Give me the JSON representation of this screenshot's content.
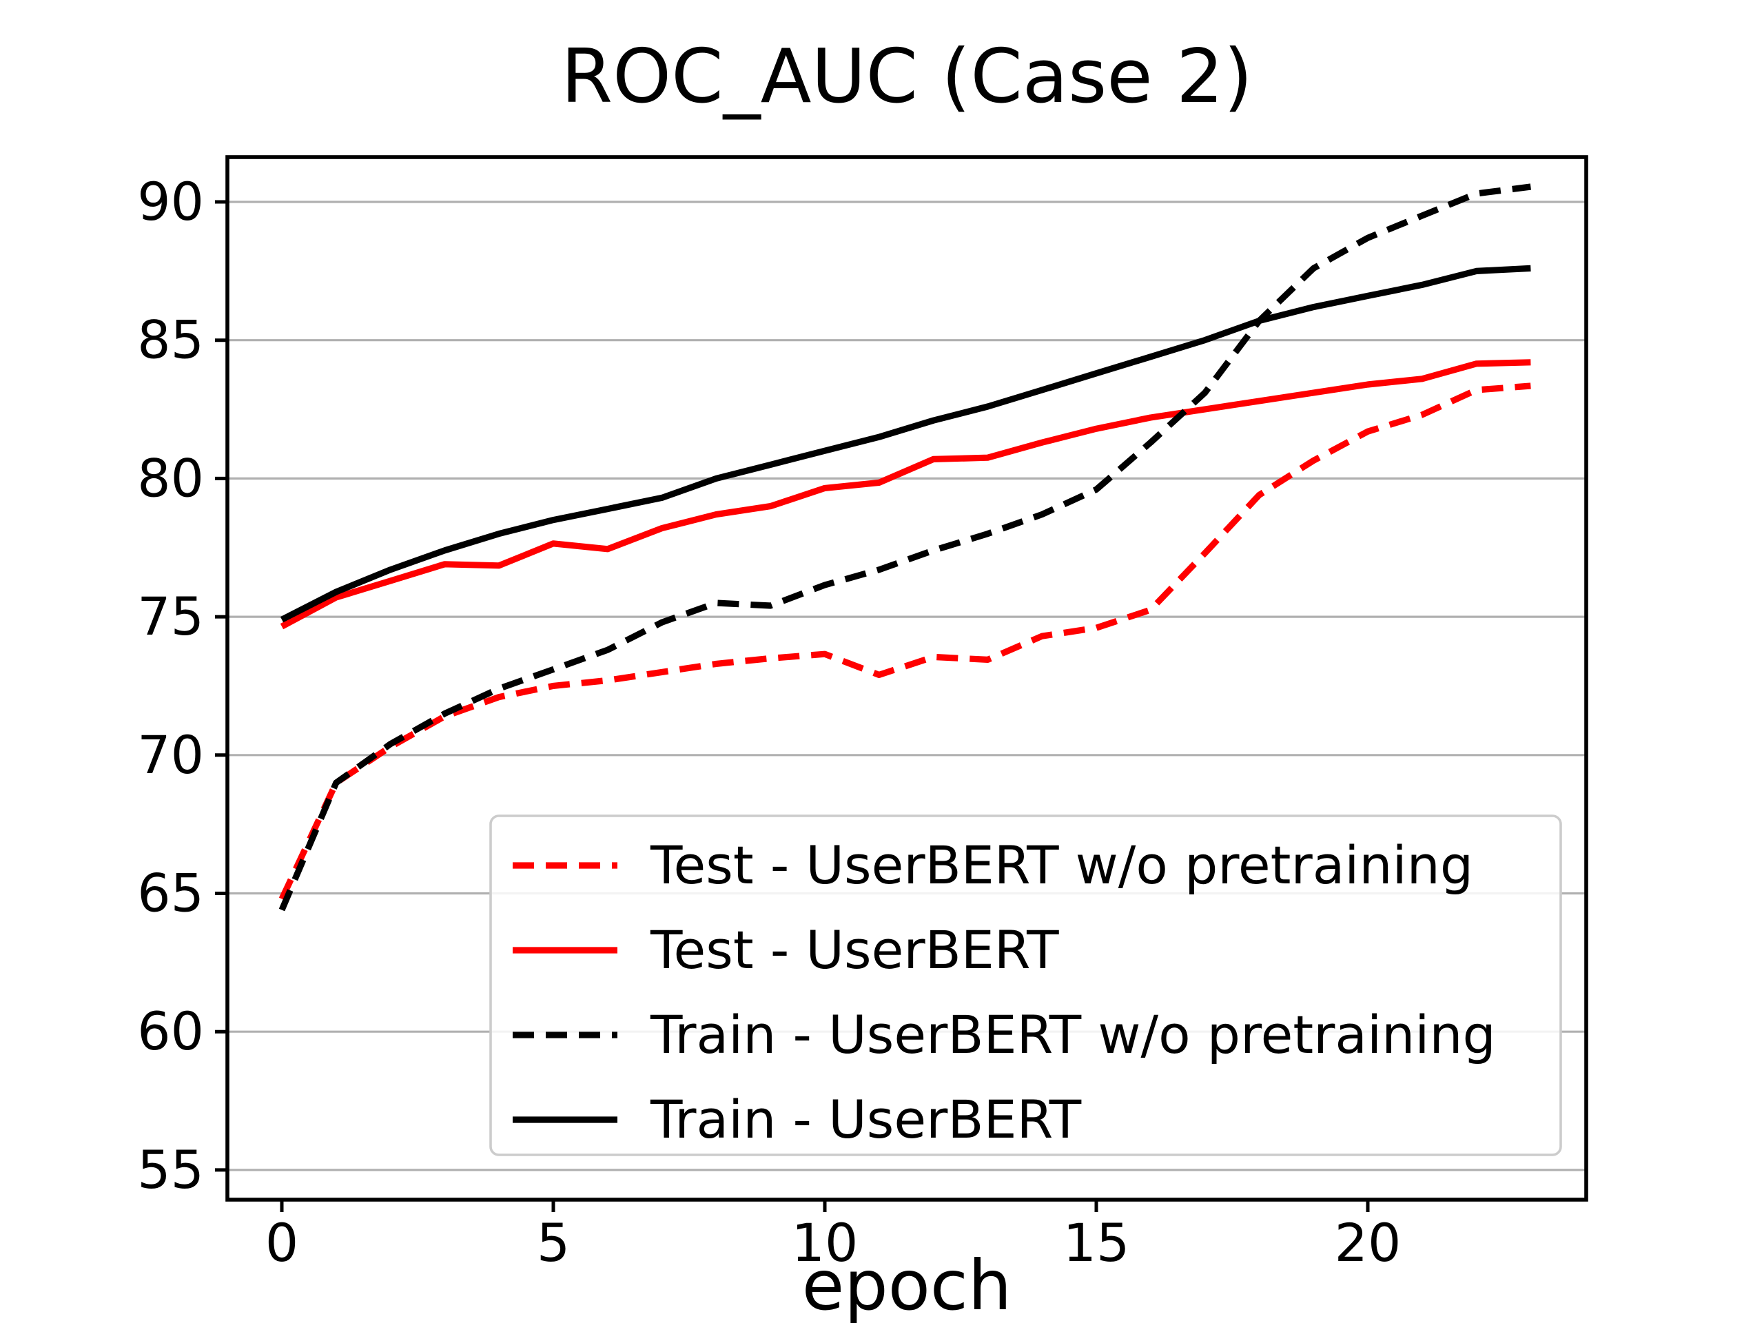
{
  "page": {
    "background": "#ffffff",
    "text_color": "#000000",
    "grid_color": "#b0b0b0",
    "spine_color": "#000000",
    "legend_border_color": "#cccccc",
    "legend_background": "rgba(255,255,255,0.85)"
  },
  "chart_data": {
    "type": "line",
    "title": "ROC_AUC (Case 2)",
    "xlabel": "epoch",
    "ylabel": "",
    "x": [
      0,
      1,
      2,
      3,
      4,
      5,
      6,
      7,
      8,
      9,
      10,
      11,
      12,
      13,
      14,
      15,
      16,
      17,
      18,
      19,
      20,
      21,
      22,
      23
    ],
    "xticks": [
      0,
      5,
      10,
      15,
      20
    ],
    "yticks": [
      55,
      60,
      65,
      70,
      75,
      80,
      85,
      90
    ],
    "xlim": [
      -1.0,
      24.1
    ],
    "ylim": [
      54.3,
      91.6
    ],
    "grid": "horizontal",
    "legend_position": "inside lower-center",
    "series": [
      {
        "name": "Test - UserBERT w/o pretraining",
        "color": "#ff0000",
        "style": "dashed",
        "values": [
          64.8,
          69.0,
          70.3,
          71.4,
          72.1,
          72.5,
          72.7,
          73.0,
          73.3,
          73.5,
          73.65,
          72.9,
          73.55,
          73.45,
          74.3,
          74.6,
          75.25,
          77.3,
          79.4,
          80.65,
          81.7,
          82.3,
          83.2,
          83.35
        ]
      },
      {
        "name": "Test - UserBERT",
        "color": "#ff0000",
        "style": "solid",
        "values": [
          74.65,
          75.7,
          76.3,
          76.9,
          76.85,
          77.65,
          77.45,
          78.2,
          78.7,
          79.0,
          79.65,
          79.85,
          80.7,
          80.75,
          81.3,
          81.8,
          82.2,
          82.5,
          82.8,
          83.1,
          83.4,
          83.6,
          84.15,
          84.2
        ]
      },
      {
        "name": "Train - UserBERT w/o pretraining",
        "color": "#000000",
        "style": "dashed",
        "values": [
          64.4,
          69.0,
          70.4,
          71.5,
          72.4,
          73.1,
          73.8,
          74.8,
          75.5,
          75.4,
          76.15,
          76.7,
          77.4,
          78.0,
          78.7,
          79.6,
          81.3,
          83.1,
          85.7,
          87.6,
          88.7,
          89.5,
          90.3,
          90.55
        ]
      },
      {
        "name": "Train - UserBERT",
        "color": "#000000",
        "style": "solid",
        "values": [
          74.9,
          75.9,
          76.7,
          77.4,
          78.0,
          78.5,
          78.9,
          79.3,
          80.0,
          80.5,
          81.0,
          81.5,
          82.1,
          82.6,
          83.2,
          83.8,
          84.4,
          85.0,
          85.7,
          86.2,
          86.6,
          87.0,
          87.5,
          87.6
        ]
      }
    ]
  }
}
